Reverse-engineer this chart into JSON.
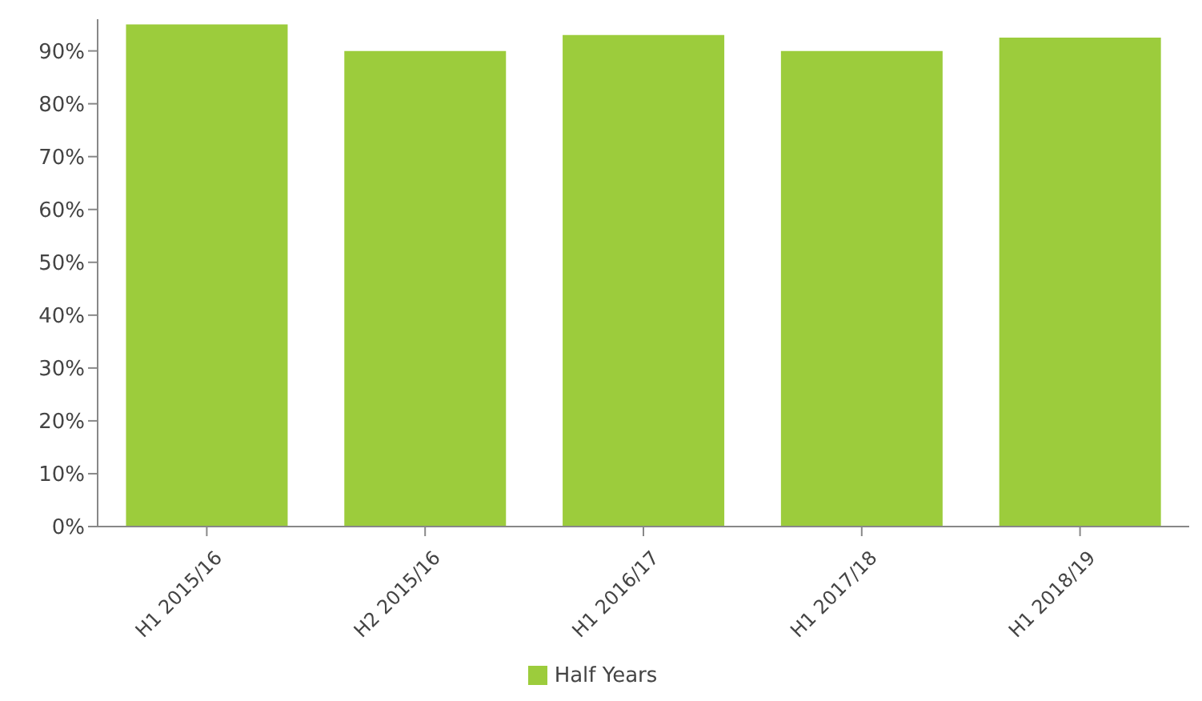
{
  "chart_data": {
    "type": "bar",
    "categories": [
      "H1 2015/16",
      "H2 2015/16",
      "H1 2016/17",
      "H1 2017/18",
      "H1 2018/19"
    ],
    "series": [
      {
        "name": "Half Years",
        "color": "#9ccc3c",
        "values": [
          95,
          90,
          93,
          90,
          92.5
        ]
      }
    ],
    "ylim": [
      0,
      96
    ],
    "yticks": [
      {
        "value": 0,
        "label": "0%"
      },
      {
        "value": 10,
        "label": "10%"
      },
      {
        "value": 20,
        "label": "20%"
      },
      {
        "value": 30,
        "label": "30%"
      },
      {
        "value": 40,
        "label": "40%"
      },
      {
        "value": 50,
        "label": "50%"
      },
      {
        "value": 60,
        "label": "60%"
      },
      {
        "value": 70,
        "label": "70%"
      },
      {
        "value": 80,
        "label": "80%"
      },
      {
        "value": 90,
        "label": "90%"
      }
    ],
    "grid": false,
    "legend": "bottom"
  }
}
